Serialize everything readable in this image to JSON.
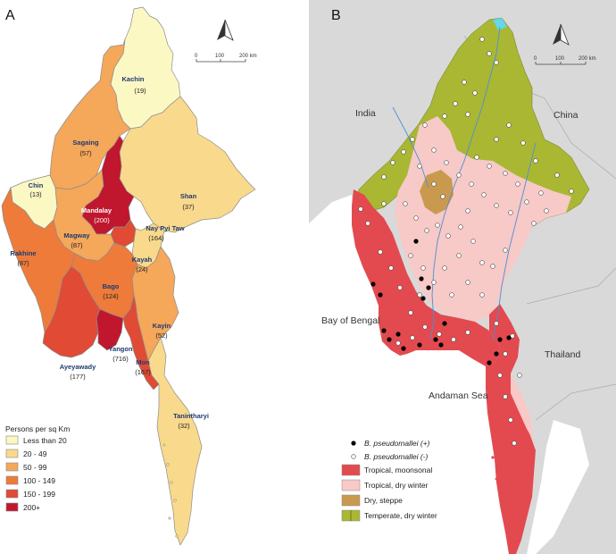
{
  "panel_a": {
    "letter": "A",
    "legend_title": "Persons per sq Km",
    "legend": [
      {
        "label": "Less than 20",
        "color": "#fbf8c4"
      },
      {
        "label": "20 - 49",
        "color": "#f9d98c"
      },
      {
        "label": "50 - 99",
        "color": "#f5a75a"
      },
      {
        "label": "100 - 149",
        "color": "#ee7b3a"
      },
      {
        "label": "150 - 199",
        "color": "#e14a34"
      },
      {
        "label": "200+",
        "color": "#c0162e"
      }
    ],
    "regions": [
      {
        "name": "Kachin",
        "value": "(19)"
      },
      {
        "name": "Sagaing",
        "value": "(57)"
      },
      {
        "name": "Chin",
        "value": "(13)"
      },
      {
        "name": "Shan",
        "value": "(37)"
      },
      {
        "name": "Mandalay",
        "value": "(200)"
      },
      {
        "name": "Nay Pyi Taw",
        "value": "(164)"
      },
      {
        "name": "Magway",
        "value": "(87)"
      },
      {
        "name": "Rakhine",
        "value": "(87)"
      },
      {
        "name": "Kayah",
        "value": "(24)"
      },
      {
        "name": "Bago",
        "value": "(124)"
      },
      {
        "name": "Kayin",
        "value": "(52)"
      },
      {
        "name": "Yangon",
        "value": "(716)"
      },
      {
        "name": "Ayeyawady",
        "value": "(177)"
      },
      {
        "name": "Mon",
        "value": "(167)"
      },
      {
        "name": "Tanintharyi",
        "value": "(32)"
      }
    ],
    "scale": {
      "ticks": [
        "0",
        "100",
        "200 km"
      ]
    }
  },
  "panel_b": {
    "letter": "B",
    "countries": {
      "india": "India",
      "china": "China",
      "thailand": "Thailand",
      "bay": "Bay of Bengal",
      "andaman": "Andaman Sea"
    },
    "legend": {
      "positive": "B. pseudomallei (+)",
      "negative": "B. pseudomallei (-)",
      "classes": [
        {
          "label": "Tropical, moonsonal",
          "color": "#e24a4f"
        },
        {
          "label": "Tropical, dry winter",
          "color": "#f7c9c7"
        },
        {
          "label": "Dry, steppe",
          "color": "#c99a4e"
        },
        {
          "label": "Temperate, dry winter",
          "color": "#a9b733"
        }
      ]
    },
    "scale": {
      "ticks": [
        "0",
        "100",
        "200 km"
      ]
    }
  }
}
